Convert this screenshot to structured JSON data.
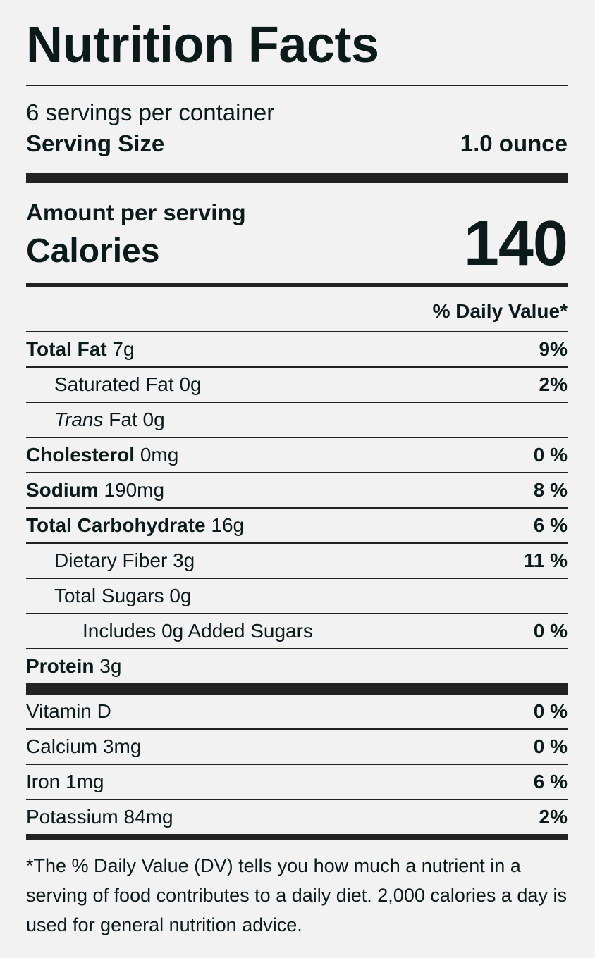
{
  "label": {
    "title": "Nutrition Facts",
    "servings_per_container": "6 servings per container",
    "serving_size_label": "Serving Size",
    "serving_size_value": "1.0 ounce",
    "amount_per_serving": "Amount per serving",
    "calories_label": "Calories",
    "calories_value": "140",
    "daily_value_header": "% Daily Value*"
  },
  "nutrients": {
    "total_fat": {
      "name": "Total Fat",
      "amount": "7g",
      "dv": "9%"
    },
    "saturated_fat": {
      "name": "Saturated Fat",
      "amount": "0g",
      "dv": "2%"
    },
    "trans_fat": {
      "name_italic": "Trans",
      "name": "Fat",
      "amount": "0g"
    },
    "cholesterol": {
      "name": "Cholesterol",
      "amount": "0mg",
      "dv": "0 %"
    },
    "sodium": {
      "name": "Sodium",
      "amount": "190mg",
      "dv": "8 %"
    },
    "total_carbohydrate": {
      "name": "Total Carbohydrate",
      "amount": "16g",
      "dv": "6 %"
    },
    "dietary_fiber": {
      "name": "Dietary Fiber",
      "amount": "3g",
      "dv": "11 %"
    },
    "total_sugars": {
      "name": "Total Sugars",
      "amount": "0g"
    },
    "added_sugars": {
      "name": "Includes 0g Added Sugars",
      "dv": "0 %"
    },
    "protein": {
      "name": "Protein",
      "amount": "3g"
    }
  },
  "vitamins": {
    "vitamin_d": {
      "name": "Vitamin D",
      "dv": "0 %"
    },
    "calcium": {
      "name": "Calcium",
      "amount": "3mg",
      "dv": "0 %"
    },
    "iron": {
      "name": "Iron",
      "amount": "1mg",
      "dv": "6 %"
    },
    "potassium": {
      "name": "Potassium",
      "amount": "84mg",
      "dv": "2%"
    }
  },
  "footnote": "*The % Daily Value (DV) tells you how much a nutrient in a serving of food contributes to a daily diet. 2,000 calories a day is used for general nutrition advice.",
  "colors": {
    "background": "#f2f2f2",
    "text": "#0d1a1a",
    "rule": "#222222"
  }
}
